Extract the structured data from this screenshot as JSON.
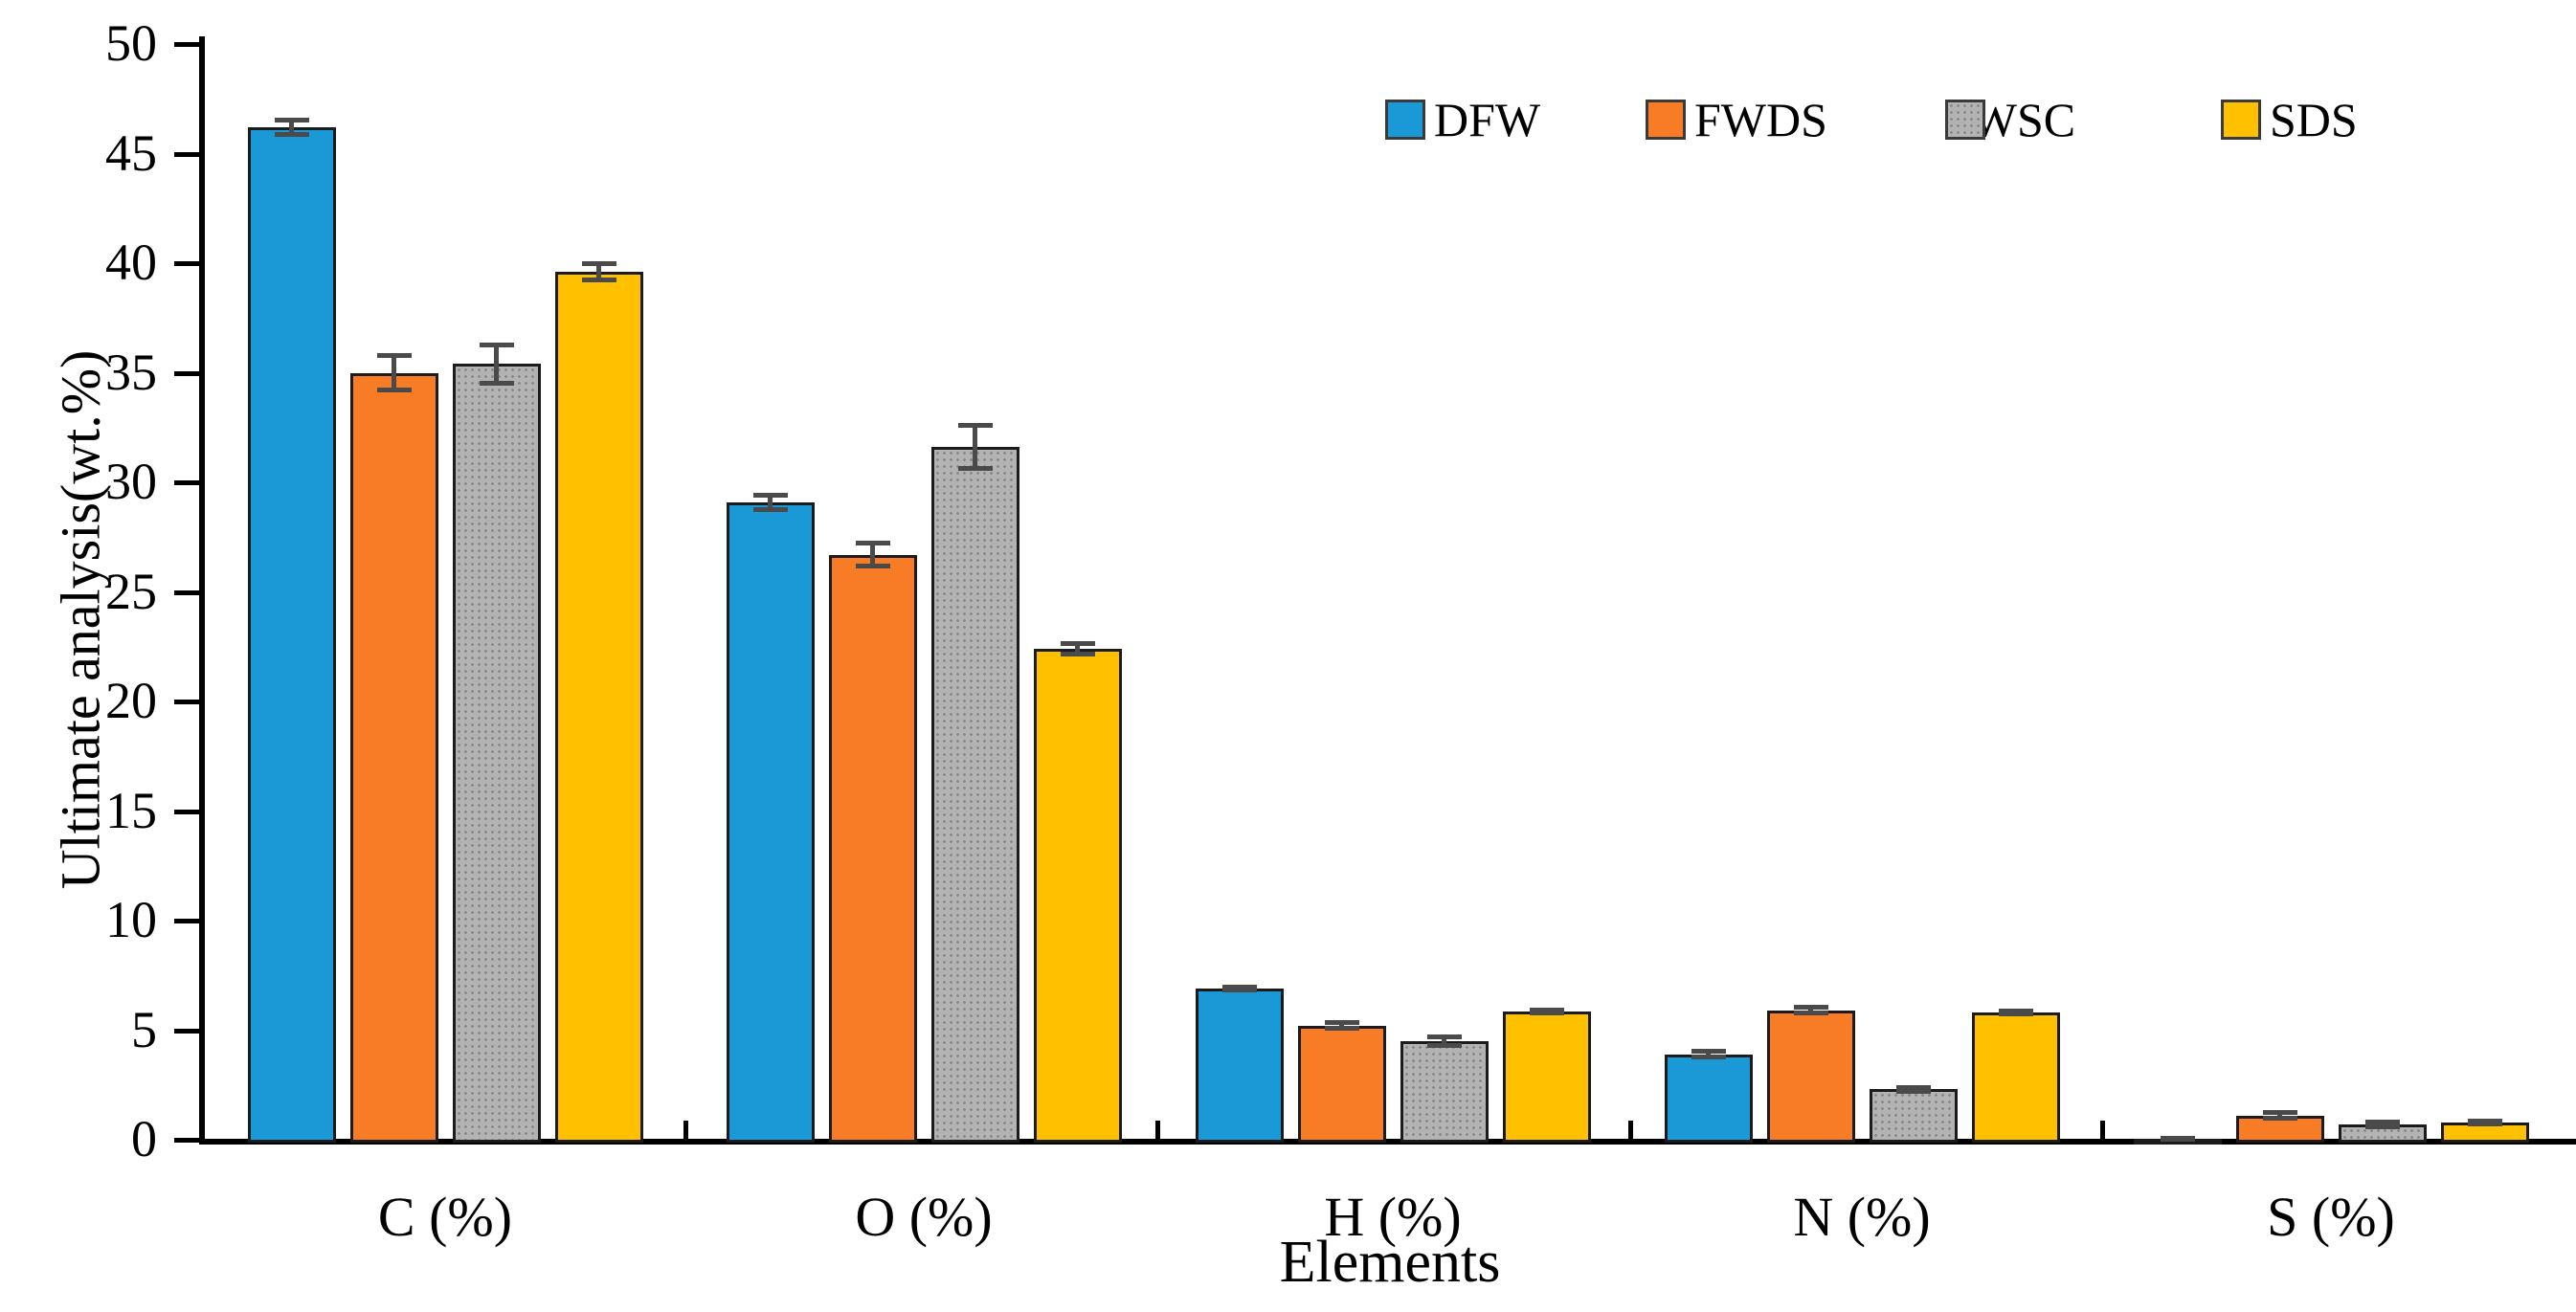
{
  "figure": {
    "background": "#ffffff",
    "axis_color": "#000000",
    "error_bar_color": "#4a4a4a"
  },
  "chart_data": {
    "type": "bar",
    "title": "",
    "xlabel": "Elements",
    "ylabel": "Ultimate analysis(wt.%)",
    "categories": [
      "C (%)",
      "O (%)",
      "H (%)",
      "N (%)",
      "S (%)"
    ],
    "series": [
      {
        "name": "DFW",
        "color": "#1A99D6",
        "pattern": "solid",
        "values": [
          46.2,
          29.1,
          6.9,
          3.9,
          0.03
        ],
        "errors": [
          0.35,
          0.35,
          0.1,
          0.15,
          0.05
        ]
      },
      {
        "name": "FWDS",
        "color": "#F87B26",
        "pattern": "solid",
        "values": [
          35.0,
          26.7,
          5.2,
          5.9,
          1.1
        ],
        "errors": [
          0.8,
          0.55,
          0.15,
          0.15,
          0.15
        ]
      },
      {
        "name": "FWSC",
        "color": "#B3B3B3",
        "pattern": "dots",
        "values": [
          35.4,
          31.6,
          4.5,
          2.3,
          0.7
        ],
        "errors": [
          0.9,
          1.0,
          0.2,
          0.12,
          0.12
        ]
      },
      {
        "name": "SDS",
        "color": "#FFC000",
        "pattern": "solid",
        "values": [
          39.6,
          22.4,
          5.85,
          5.8,
          0.8
        ],
        "errors": [
          0.4,
          0.25,
          0.1,
          0.1,
          0.08
        ]
      }
    ],
    "ylim": [
      0,
      50
    ],
    "ytick_step": 5,
    "ytick_labels": [
      "0",
      "5",
      "10",
      "15",
      "20",
      "25",
      "30",
      "35",
      "40",
      "45",
      "50"
    ],
    "grid": false,
    "legend_position": "top-right",
    "legend_entries": [
      "DFW",
      "FWDS",
      "FWSC",
      "SDS"
    ]
  }
}
